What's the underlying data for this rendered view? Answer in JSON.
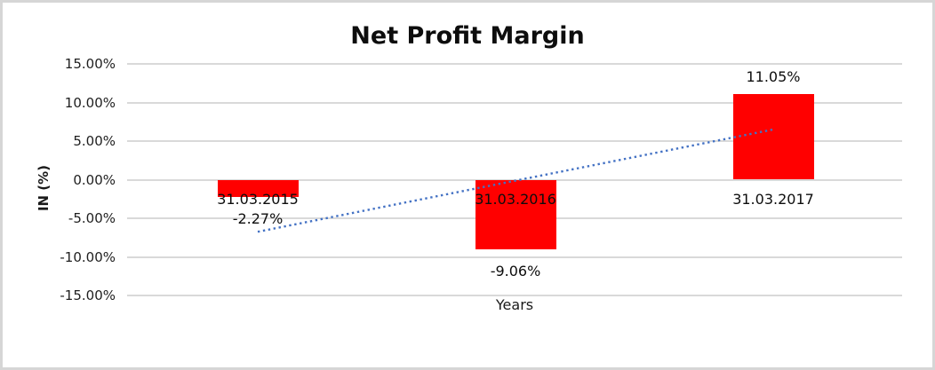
{
  "chart_data": {
    "type": "bar",
    "title": "Net Profit Margin",
    "xlabel": "Years",
    "ylabel": "IN (%)",
    "categories": [
      "31.03.2015",
      "31.03.2016",
      "31.03.2017"
    ],
    "values": [
      -2.27,
      -9.06,
      11.05
    ],
    "value_labels": [
      "-2.27%",
      "-9.06%",
      "11.05%"
    ],
    "series_name": "Net Profit Margin",
    "y_ticks": [
      {
        "value": 15,
        "label": "15.00%"
      },
      {
        "value": 10,
        "label": "10.00%"
      },
      {
        "value": 5,
        "label": "5.00%"
      },
      {
        "value": 0,
        "label": "0.00%"
      },
      {
        "value": -5,
        "label": "-5.00%"
      },
      {
        "value": -10,
        "label": "-10.00%"
      },
      {
        "value": -15,
        "label": "-15.00%"
      }
    ],
    "ylim": [
      -15,
      15
    ],
    "grid": "horizontal",
    "legend_position": "none",
    "bar_color": "#ff0000",
    "gridline_color": "#d9d9d9",
    "trendline": {
      "kind": "linear",
      "style": "dotted",
      "color": "#4472c4",
      "start_pct": -6.75,
      "end_pct": 6.5
    }
  }
}
